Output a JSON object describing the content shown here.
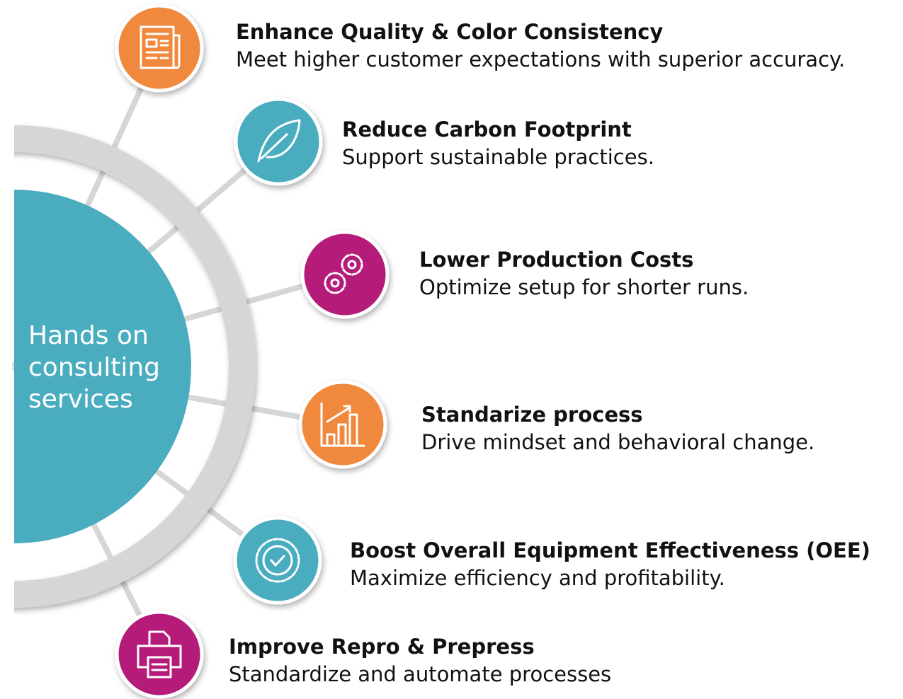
{
  "center": {
    "lines": [
      "Hands on",
      "consulting",
      "services"
    ]
  },
  "nodes": [
    {
      "title": "Enhance Quality & Color Consistency",
      "description": "Meet higher customer expectations with superior accuracy.",
      "color": "#f0883e",
      "icon": "document"
    },
    {
      "title": "Reduce Carbon Footprint",
      "description": "Support sustainable practices.",
      "color": "#4aacbf",
      "icon": "leaf"
    },
    {
      "title": "Lower Production Costs",
      "description": "Optimize setup for shorter runs.",
      "color": "#b51f7a",
      "icon": "gears"
    },
    {
      "title": "Standarize process",
      "description": "Drive mindset and behavioral change.",
      "color": "#f0883e",
      "icon": "chart"
    },
    {
      "title": "Boost Overall Equipment Effectiveness (OEE)",
      "description": "Maximize efficiency and profitability.",
      "color": "#4aacbf",
      "icon": "badge"
    },
    {
      "title": "Improve Repro & Prepress",
      "description": "Standardize and automate processes",
      "color": "#b51f7a",
      "icon": "printer"
    }
  ]
}
